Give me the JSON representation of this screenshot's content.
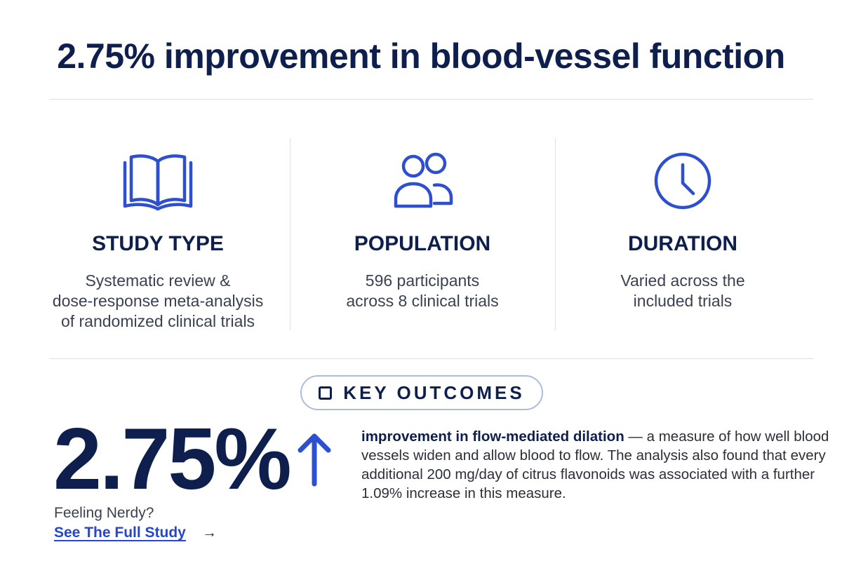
{
  "title": "2.75% improvement in blood-vessel function",
  "columns": [
    {
      "icon": "book-icon",
      "heading": "STUDY TYPE",
      "description": "Systematic review &\ndose-response meta-analysis\nof randomized clinical trials"
    },
    {
      "icon": "people-icon",
      "heading": "POPULATION",
      "description": "596 participants\nacross 8 clinical trials"
    },
    {
      "icon": "clock-icon",
      "heading": "DURATION",
      "description": "Varied across the\nincluded trials"
    }
  ],
  "key_outcomes": {
    "label": "KEY OUTCOMES",
    "icon": "checkbox-icon",
    "value": "2.75%",
    "trend_icon": "arrow-up-icon",
    "lead": "improvement in flow-mediated dilation",
    "body": " — a measure of how well blood vessels widen and allow blood to flow. The analysis also found that every additional 200 mg/day of citrus flavonoids was associated with a further 1.09% increase in this measure."
  },
  "footer": {
    "prompt": "Feeling Nerdy?",
    "link_label": "See The Full Study",
    "link_arrow": "→"
  },
  "colors": {
    "navy": "#0f1f4d",
    "accent_blue": "#2747c9",
    "icon_blue": "#2d4fd0",
    "divider": "#dde1e7"
  }
}
